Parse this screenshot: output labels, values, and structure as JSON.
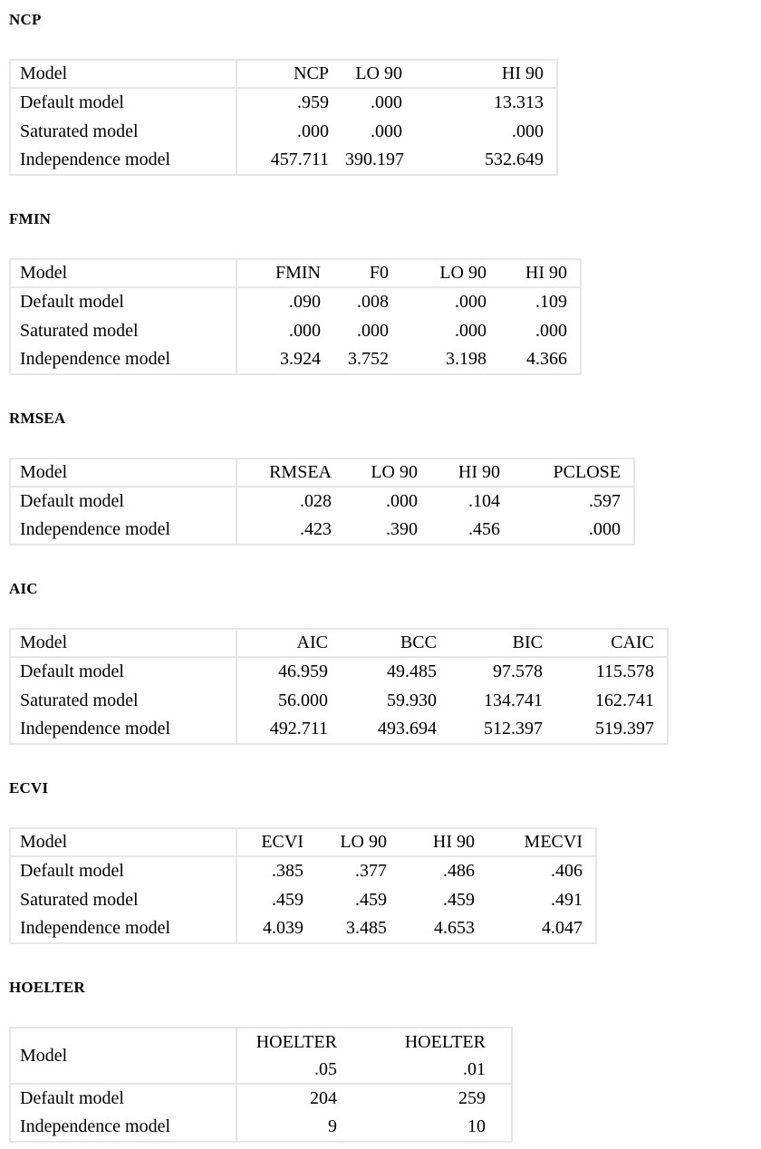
{
  "page": {
    "background": "#ffffff",
    "text_color": "#000000",
    "border_color": "#e7e7e7"
  },
  "sections": [
    {
      "id": "ncp",
      "heading": "NCP",
      "columns": [
        "Model",
        "NCP",
        "LO 90",
        "HI 90"
      ],
      "rows": [
        [
          "Default model",
          ".959",
          ".000",
          "13.313"
        ],
        [
          "Saturated model",
          ".000",
          ".000",
          ".000"
        ],
        [
          "Independence model",
          "457.711",
          "390.197",
          "532.649"
        ]
      ]
    },
    {
      "id": "fmin",
      "heading": "FMIN",
      "columns": [
        "Model",
        "FMIN",
        "F0",
        "LO 90",
        "HI 90"
      ],
      "rows": [
        [
          "Default model",
          ".090",
          ".008",
          ".000",
          ".109"
        ],
        [
          "Saturated model",
          ".000",
          ".000",
          ".000",
          ".000"
        ],
        [
          "Independence model",
          "3.924",
          "3.752",
          "3.198",
          "4.366"
        ]
      ]
    },
    {
      "id": "rmsea",
      "heading": "RMSEA",
      "columns": [
        "Model",
        "RMSEA",
        "LO 90",
        "HI 90",
        "PCLOSE"
      ],
      "rows": [
        [
          "Default model",
          ".028",
          ".000",
          ".104",
          ".597"
        ],
        [
          "Independence model",
          ".423",
          ".390",
          ".456",
          ".000"
        ]
      ]
    },
    {
      "id": "aic",
      "heading": "AIC",
      "columns": [
        "Model",
        "AIC",
        "BCC",
        "BIC",
        "CAIC"
      ],
      "rows": [
        [
          "Default model",
          "46.959",
          "49.485",
          "97.578",
          "115.578"
        ],
        [
          "Saturated model",
          "56.000",
          "59.930",
          "134.741",
          "162.741"
        ],
        [
          "Independence model",
          "492.711",
          "493.694",
          "512.397",
          "519.397"
        ]
      ]
    },
    {
      "id": "ecvi",
      "heading": "ECVI",
      "columns": [
        "Model",
        "ECVI",
        "LO 90",
        "HI 90",
        "MECVI"
      ],
      "rows": [
        [
          "Default model",
          ".385",
          ".377",
          ".486",
          ".406"
        ],
        [
          "Saturated model",
          ".459",
          ".459",
          ".459",
          ".491"
        ],
        [
          "Independence model",
          "4.039",
          "3.485",
          "4.653",
          "4.047"
        ]
      ]
    },
    {
      "id": "hoelter",
      "heading": "HOELTER",
      "columns": [
        "Model",
        "HOELTER\n.05",
        "HOELTER\n.01"
      ],
      "rows": [
        [
          "Default model",
          "204",
          "259"
        ],
        [
          "Independence model",
          "9",
          "10"
        ]
      ]
    }
  ]
}
